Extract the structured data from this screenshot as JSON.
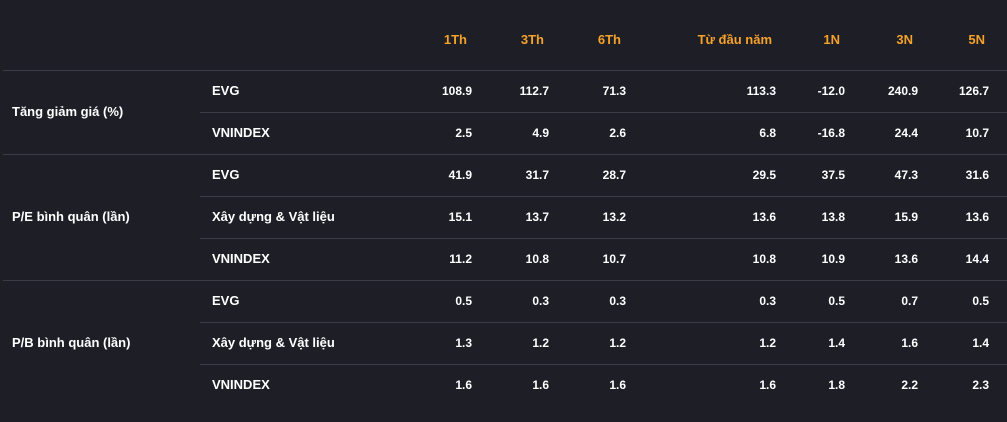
{
  "headers": [
    "1Th",
    "3Th",
    "6Th",
    "Từ đầu năm",
    "1N",
    "3N",
    "5N"
  ],
  "groups": [
    {
      "label": "Tăng giảm giá (%)",
      "rows": [
        {
          "name": "EVG",
          "values": [
            "108.9",
            "112.7",
            "71.3",
            "113.3",
            "-12.0",
            "240.9",
            "126.7"
          ]
        },
        {
          "name": "VNINDEX",
          "values": [
            "2.5",
            "4.9",
            "2.6",
            "6.8",
            "-16.8",
            "24.4",
            "10.7"
          ]
        }
      ]
    },
    {
      "label": "P/E bình quân (lần)",
      "rows": [
        {
          "name": "EVG",
          "values": [
            "41.9",
            "31.7",
            "28.7",
            "29.5",
            "37.5",
            "47.3",
            "31.6"
          ]
        },
        {
          "name": "Xây dựng & Vật liệu",
          "values": [
            "15.1",
            "13.7",
            "13.2",
            "13.6",
            "13.8",
            "15.9",
            "13.6"
          ]
        },
        {
          "name": "VNINDEX",
          "values": [
            "11.2",
            "10.8",
            "10.7",
            "10.8",
            "10.9",
            "13.6",
            "14.4"
          ]
        }
      ]
    },
    {
      "label": "P/B bình quân (lần)",
      "rows": [
        {
          "name": "EVG",
          "values": [
            "0.5",
            "0.3",
            "0.3",
            "0.3",
            "0.5",
            "0.7",
            "0.5"
          ]
        },
        {
          "name": "Xây dựng & Vật liệu",
          "values": [
            "1.3",
            "1.2",
            "1.2",
            "1.2",
            "1.4",
            "1.6",
            "1.4"
          ]
        },
        {
          "name": "VNINDEX",
          "values": [
            "1.6",
            "1.6",
            "1.6",
            "1.6",
            "1.8",
            "2.2",
            "2.3"
          ]
        }
      ]
    }
  ]
}
